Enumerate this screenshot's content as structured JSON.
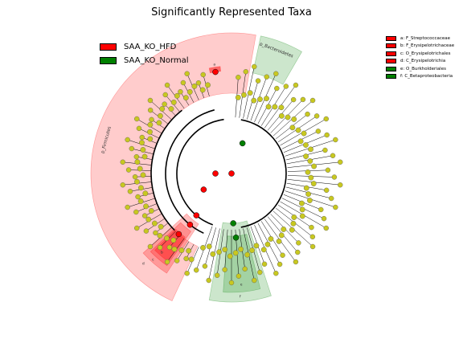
{
  "title": "Significantly Represented Taxa",
  "legend": [
    {
      "label": "SAA_KO_HFD",
      "color": "#ff0000"
    },
    {
      "label": "SAA_KO_Normal",
      "color": "#008000"
    }
  ],
  "key": [
    {
      "label": "a: F_Streptococcaceae",
      "color": "#ff0000"
    },
    {
      "label": "b: F_Erysipelotrichaceae",
      "color": "#ff0000"
    },
    {
      "label": "c: O_Erysipelotrichales",
      "color": "#ff0000"
    },
    {
      "label": "d: C_Erysipelotrichia",
      "color": "#ff0000"
    },
    {
      "label": "e: O_Burkholderiales",
      "color": "#008000"
    },
    {
      "label": "f: C_Betaproteobacteria",
      "color": "#008000"
    }
  ],
  "clades": [
    {
      "label": "p_Firmicutes",
      "color": "#ff0000"
    },
    {
      "label": "p_Bacteroidetes",
      "color": "#008000"
    }
  ],
  "small_labels": [
    "a",
    "b",
    "c",
    "d",
    "e",
    "f"
  ],
  "colors": {
    "hfd": "#ff0000",
    "normal": "#008000",
    "neutral": "#c8c820"
  }
}
